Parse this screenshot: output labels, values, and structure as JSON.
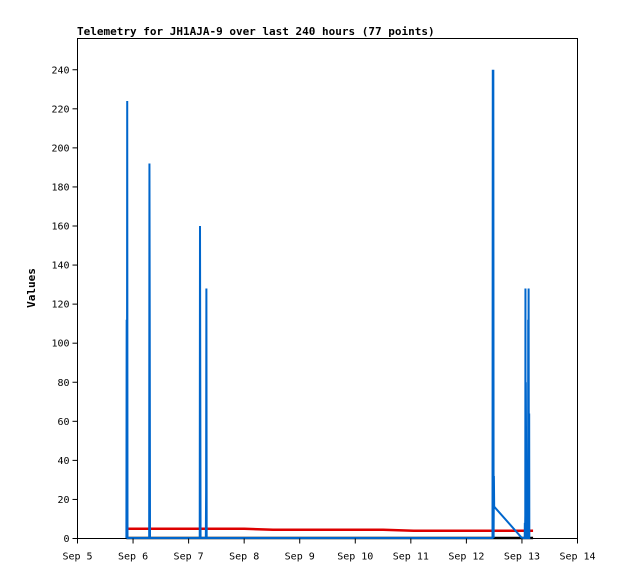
{
  "chart_data": {
    "type": "line",
    "title": "Telemetry for JH1AJA-9 over last 240 hours (77 points)",
    "xlabel": "",
    "ylabel": "Values",
    "x_ticks": [
      "Sep 5",
      "Sep 6",
      "Sep 7",
      "Sep 8",
      "Sep 9",
      "Sep 10",
      "Sep 11",
      "Sep 12",
      "Sep 13",
      "Sep 14"
    ],
    "xlim": [
      0,
      9
    ],
    "ylim": [
      0,
      256
    ],
    "y_ticks": [
      0,
      20,
      40,
      60,
      80,
      100,
      120,
      140,
      160,
      180,
      200,
      220,
      240
    ],
    "grid": false,
    "colors": {
      "series_blue": "#0066cc",
      "series_red": "#dd0000",
      "series_black": "#000000"
    },
    "series": [
      {
        "color": "#0066cc",
        "x": [
          0.88,
          0.885,
          0.89,
          0.895,
          0.9,
          0.905,
          1.29,
          1.295,
          1.3,
          1.305,
          1.31,
          1.315,
          2.2,
          2.205,
          2.21,
          2.215,
          2.22,
          2.225,
          2.31,
          2.315,
          2.32,
          2.325,
          7.47,
          7.475,
          7.48,
          7.485,
          7.49,
          7.495,
          7.5,
          7.505,
          7.51,
          8.0,
          8.01,
          8.05,
          8.052,
          8.055,
          8.06,
          8.063,
          8.066,
          8.07,
          8.08,
          8.11,
          8.113,
          8.116,
          8.12,
          8.125,
          8.13,
          8.133,
          8.136,
          8.14,
          8.15
        ],
        "values": [
          0,
          112,
          0,
          224,
          0,
          0,
          0,
          192,
          112,
          0,
          0,
          0,
          0,
          160,
          80,
          0,
          0,
          0,
          0,
          24,
          128,
          0,
          0,
          240,
          0,
          240,
          0,
          32,
          16,
          16,
          16,
          0,
          0,
          0,
          8,
          0,
          12,
          128,
          0,
          80,
          0,
          0,
          112,
          48,
          128,
          0,
          64,
          0,
          0,
          0,
          0
        ]
      },
      {
        "color": "#dd0000",
        "x": [
          0.88,
          1.5,
          2.5,
          3.0,
          3.52,
          4.5,
          5.5,
          6.05,
          6.6,
          7.0,
          7.47,
          8.2
        ],
        "values": [
          5,
          5,
          5,
          5,
          4.5,
          4.5,
          4.5,
          4,
          4,
          4,
          4,
          4
        ]
      },
      {
        "color": "#000000",
        "x": [
          0.88,
          2.0,
          3.0,
          4.0,
          5.0,
          6.0,
          7.0,
          8.0,
          8.2
        ],
        "values": [
          0,
          0,
          0,
          0,
          0,
          0,
          0,
          0,
          0
        ]
      }
    ]
  }
}
